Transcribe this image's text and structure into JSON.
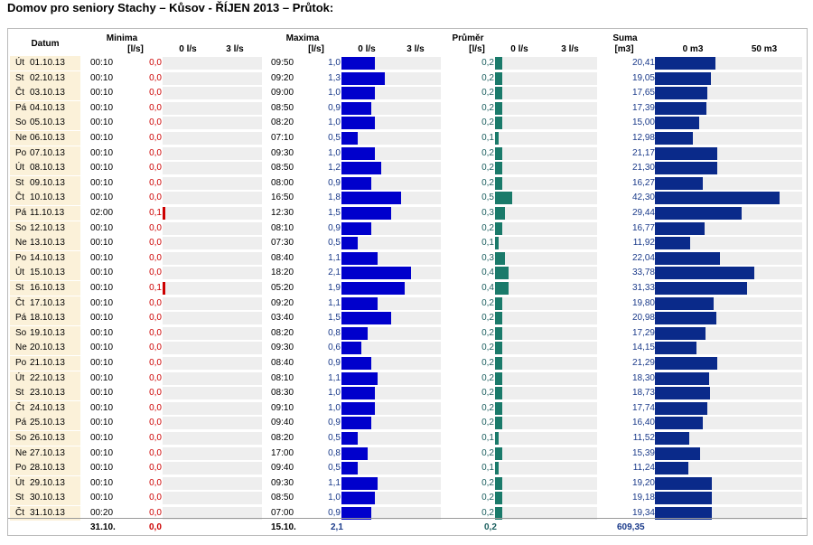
{
  "title": "Domov pro seniory Stachy – Kůsov - ŘÍJEN 2013 – Průtok:",
  "headers": {
    "datum": "Datum",
    "minima": "Minima",
    "minima_unit": "[l/s]",
    "minima_scale_min": "0 l/s",
    "minima_scale_max": "3 l/s",
    "maxima": "Maxima",
    "maxima_unit": "[l/s]",
    "maxima_scale_min": "0 l/s",
    "maxima_scale_max": "3 l/s",
    "prumer": "Průměr",
    "prumer_unit": "[l/s]",
    "prumer_scale_min": "0 l/s",
    "prumer_scale_max": "3 l/s",
    "suma": "Suma",
    "suma_unit": "[m3]",
    "suma_scale_min": "0 m3",
    "suma_scale_max": "50 m3"
  },
  "footer": {
    "min_time": "31.10.",
    "min_value": "0,0",
    "max_time": "15.10.",
    "max_value": "2,1",
    "avg_value": "0,2",
    "sum_value": "609,35"
  },
  "colors": {
    "minima": "#cc0000",
    "maxima": "#0000cc",
    "prumer": "#1a7a6a",
    "suma": "#0a2a8a",
    "track": "#eeeeee",
    "date_bg": "#fbf1d9"
  },
  "chart_data": {
    "type": "table",
    "scales": {
      "flow_max": 3,
      "sum_max": 50
    },
    "rows": [
      {
        "day": "Út",
        "date": "01.10.13",
        "min_time": "00:10",
        "min": "0,0",
        "max_time": "09:50",
        "max": "1,0",
        "avg": "0,2",
        "sum": "20,41"
      },
      {
        "day": "St",
        "date": "02.10.13",
        "min_time": "00:10",
        "min": "0,0",
        "max_time": "09:20",
        "max": "1,3",
        "avg": "0,2",
        "sum": "19,05"
      },
      {
        "day": "Čt",
        "date": "03.10.13",
        "min_time": "00:10",
        "min": "0,0",
        "max_time": "09:00",
        "max": "1,0",
        "avg": "0,2",
        "sum": "17,65"
      },
      {
        "day": "Pá",
        "date": "04.10.13",
        "min_time": "00:10",
        "min": "0,0",
        "max_time": "08:50",
        "max": "0,9",
        "avg": "0,2",
        "sum": "17,39"
      },
      {
        "day": "So",
        "date": "05.10.13",
        "min_time": "00:10",
        "min": "0,0",
        "max_time": "08:20",
        "max": "1,0",
        "avg": "0,2",
        "sum": "15,00"
      },
      {
        "day": "Ne",
        "date": "06.10.13",
        "min_time": "00:10",
        "min": "0,0",
        "max_time": "07:10",
        "max": "0,5",
        "avg": "0,1",
        "sum": "12,98"
      },
      {
        "day": "Po",
        "date": "07.10.13",
        "min_time": "00:10",
        "min": "0,0",
        "max_time": "09:30",
        "max": "1,0",
        "avg": "0,2",
        "sum": "21,17"
      },
      {
        "day": "Út",
        "date": "08.10.13",
        "min_time": "00:10",
        "min": "0,0",
        "max_time": "08:50",
        "max": "1,2",
        "avg": "0,2",
        "sum": "21,30"
      },
      {
        "day": "St",
        "date": "09.10.13",
        "min_time": "00:10",
        "min": "0,0",
        "max_time": "08:00",
        "max": "0,9",
        "avg": "0,2",
        "sum": "16,27"
      },
      {
        "day": "Čt",
        "date": "10.10.13",
        "min_time": "00:10",
        "min": "0,0",
        "max_time": "16:50",
        "max": "1,8",
        "avg": "0,5",
        "sum": "42,30"
      },
      {
        "day": "Pá",
        "date": "11.10.13",
        "min_time": "02:00",
        "min": "0,1",
        "max_time": "12:30",
        "max": "1,5",
        "avg": "0,3",
        "sum": "29,44"
      },
      {
        "day": "So",
        "date": "12.10.13",
        "min_time": "00:10",
        "min": "0,0",
        "max_time": "08:10",
        "max": "0,9",
        "avg": "0,2",
        "sum": "16,77"
      },
      {
        "day": "Ne",
        "date": "13.10.13",
        "min_time": "00:10",
        "min": "0,0",
        "max_time": "07:30",
        "max": "0,5",
        "avg": "0,1",
        "sum": "11,92"
      },
      {
        "day": "Po",
        "date": "14.10.13",
        "min_time": "00:10",
        "min": "0,0",
        "max_time": "08:40",
        "max": "1,1",
        "avg": "0,3",
        "sum": "22,04"
      },
      {
        "day": "Út",
        "date": "15.10.13",
        "min_time": "00:10",
        "min": "0,0",
        "max_time": "18:20",
        "max": "2,1",
        "avg": "0,4",
        "sum": "33,78"
      },
      {
        "day": "St",
        "date": "16.10.13",
        "min_time": "00:10",
        "min": "0,1",
        "max_time": "05:20",
        "max": "1,9",
        "avg": "0,4",
        "sum": "31,33"
      },
      {
        "day": "Čt",
        "date": "17.10.13",
        "min_time": "00:10",
        "min": "0,0",
        "max_time": "09:20",
        "max": "1,1",
        "avg": "0,2",
        "sum": "19,80"
      },
      {
        "day": "Pá",
        "date": "18.10.13",
        "min_time": "00:10",
        "min": "0,0",
        "max_time": "03:40",
        "max": "1,5",
        "avg": "0,2",
        "sum": "20,98"
      },
      {
        "day": "So",
        "date": "19.10.13",
        "min_time": "00:10",
        "min": "0,0",
        "max_time": "08:20",
        "max": "0,8",
        "avg": "0,2",
        "sum": "17,29"
      },
      {
        "day": "Ne",
        "date": "20.10.13",
        "min_time": "00:10",
        "min": "0,0",
        "max_time": "09:30",
        "max": "0,6",
        "avg": "0,2",
        "sum": "14,15"
      },
      {
        "day": "Po",
        "date": "21.10.13",
        "min_time": "00:10",
        "min": "0,0",
        "max_time": "08:40",
        "max": "0,9",
        "avg": "0,2",
        "sum": "21,29"
      },
      {
        "day": "Út",
        "date": "22.10.13",
        "min_time": "00:10",
        "min": "0,0",
        "max_time": "08:10",
        "max": "1,1",
        "avg": "0,2",
        "sum": "18,30"
      },
      {
        "day": "St",
        "date": "23.10.13",
        "min_time": "00:10",
        "min": "0,0",
        "max_time": "08:30",
        "max": "1,0",
        "avg": "0,2",
        "sum": "18,73"
      },
      {
        "day": "Čt",
        "date": "24.10.13",
        "min_time": "00:10",
        "min": "0,0",
        "max_time": "09:10",
        "max": "1,0",
        "avg": "0,2",
        "sum": "17,74"
      },
      {
        "day": "Pá",
        "date": "25.10.13",
        "min_time": "00:10",
        "min": "0,0",
        "max_time": "09:40",
        "max": "0,9",
        "avg": "0,2",
        "sum": "16,40"
      },
      {
        "day": "So",
        "date": "26.10.13",
        "min_time": "00:10",
        "min": "0,0",
        "max_time": "08:20",
        "max": "0,5",
        "avg": "0,1",
        "sum": "11,52"
      },
      {
        "day": "Ne",
        "date": "27.10.13",
        "min_time": "00:10",
        "min": "0,0",
        "max_time": "17:00",
        "max": "0,8",
        "avg": "0,2",
        "sum": "15,39"
      },
      {
        "day": "Po",
        "date": "28.10.13",
        "min_time": "00:10",
        "min": "0,0",
        "max_time": "09:40",
        "max": "0,5",
        "avg": "0,1",
        "sum": "11,24"
      },
      {
        "day": "Út",
        "date": "29.10.13",
        "min_time": "00:10",
        "min": "0,0",
        "max_time": "09:30",
        "max": "1,1",
        "avg": "0,2",
        "sum": "19,20"
      },
      {
        "day": "St",
        "date": "30.10.13",
        "min_time": "00:10",
        "min": "0,0",
        "max_time": "08:50",
        "max": "1,0",
        "avg": "0,2",
        "sum": "19,18"
      },
      {
        "day": "Čt",
        "date": "31.10.13",
        "min_time": "00:20",
        "min": "0,0",
        "max_time": "07:00",
        "max": "0,9",
        "avg": "0,2",
        "sum": "19,34"
      }
    ]
  }
}
